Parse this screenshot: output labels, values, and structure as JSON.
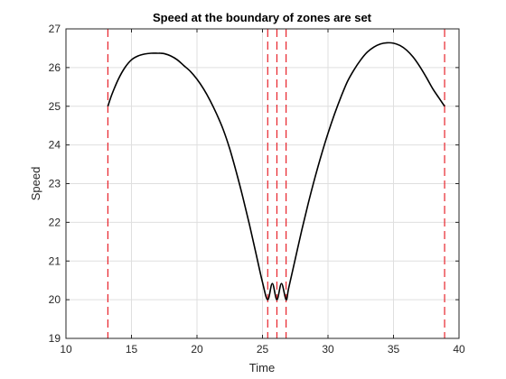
{
  "chart_data": {
    "type": "line",
    "title": "Speed at the boundary of zones are set",
    "xlabel": "Time",
    "ylabel": "Speed",
    "xlim": [
      10,
      40
    ],
    "ylim": [
      19,
      27
    ],
    "xticks": [
      10,
      15,
      20,
      25,
      30,
      35,
      40
    ],
    "yticks": [
      19,
      20,
      21,
      22,
      23,
      24,
      25,
      26,
      27
    ],
    "grid": true,
    "line_color": "#000000",
    "boundary_color": "#e8232b",
    "zone_boundaries": [
      13.2,
      25.4,
      26.1,
      26.8,
      38.9
    ],
    "series": [
      {
        "x": [
          13.2,
          13.5,
          14,
          14.5,
          15,
          15.5,
          16,
          16.5,
          17,
          17.2,
          17.5,
          18,
          18.5,
          19,
          19.5,
          20,
          20.5,
          21,
          21.5,
          22,
          22.5,
          23,
          23.5,
          24,
          24.5,
          25,
          25.4,
          25.75,
          26.1,
          26.45,
          26.8,
          27,
          27.5,
          28,
          28.5,
          29,
          29.5,
          30,
          30.5,
          31,
          31.5,
          32,
          32.5,
          33,
          33.5,
          34,
          34.5,
          35,
          35.5,
          36,
          36.5,
          37,
          37.5,
          38,
          38.5,
          38.9
        ],
        "y": [
          25.0,
          25.3,
          25.7,
          26.0,
          26.2,
          26.3,
          26.35,
          26.37,
          26.37,
          26.37,
          26.36,
          26.3,
          26.2,
          26.05,
          25.9,
          25.7,
          25.45,
          25.15,
          24.8,
          24.4,
          23.9,
          23.3,
          22.65,
          21.95,
          21.2,
          20.45,
          20.0,
          20.42,
          20.0,
          20.42,
          20.0,
          20.3,
          21.05,
          21.8,
          22.5,
          23.15,
          23.75,
          24.3,
          24.8,
          25.25,
          25.65,
          25.95,
          26.2,
          26.4,
          26.53,
          26.61,
          26.64,
          26.63,
          26.57,
          26.45,
          26.27,
          26.03,
          25.75,
          25.45,
          25.2,
          25.0
        ]
      }
    ]
  }
}
